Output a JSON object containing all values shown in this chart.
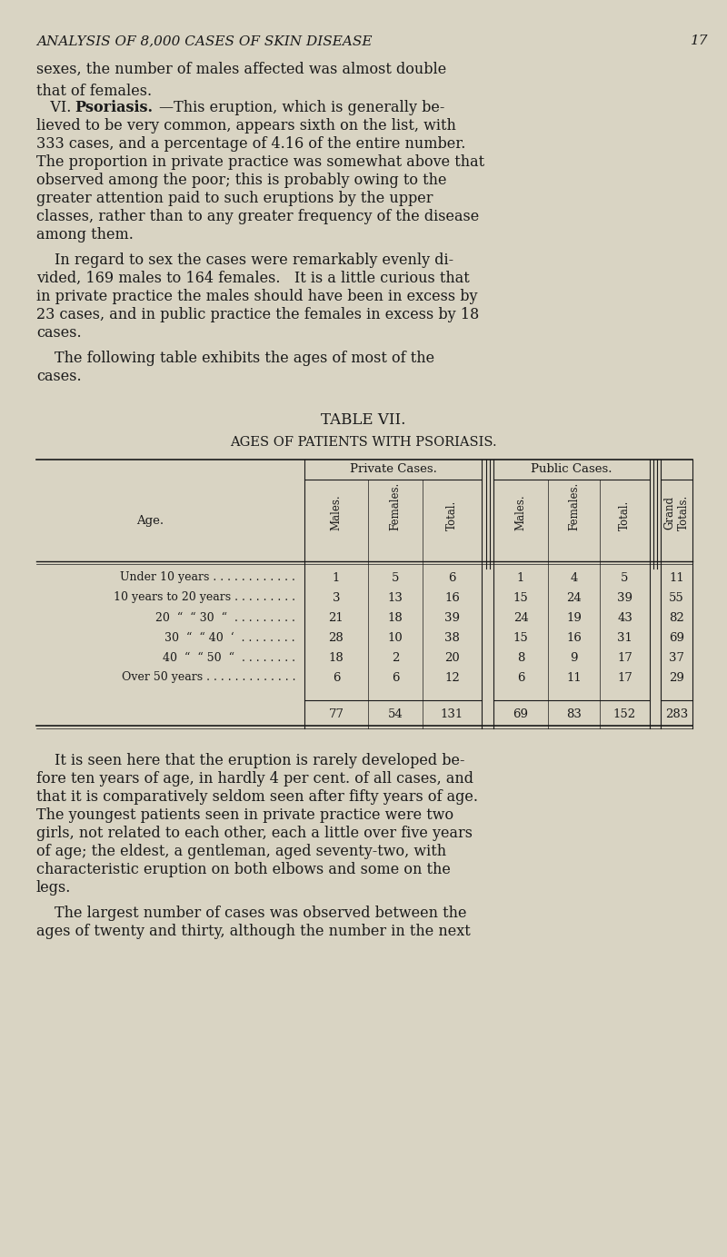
{
  "bg_color": "#d9d4c3",
  "text_color": "#1a1a1a",
  "page_header": "ANALYSIS OF 8,000 CASES OF SKIN DISEASE",
  "page_number": "17",
  "para1": "sexes, the number of males affected was almost double\nthat of females.",
  "para2_bold": "Psoriasis.",
  "para2_roman": "VI.",
  "para2_rest": "—This eruption, which is generally be-\nlieved to be very common, appears sixth on the list, with\n333 cases, and a percentage of 4.16 of the entire number.\nThe proportion in private practice was somewhat above that\nobserved among the poor; this is probably owing to the\ngreater attention paid to such eruptions by the upper\nclasses, rather than to any greater frequency of the disease\namong them.",
  "para3": "In regard to sex the cases were remarkably evenly di-\nvided, 169 males to 164 females.   It is a little curious that\nin private practice the males should have been in excess by\n23 cases, and in public practice the females in excess by 18\ncases.",
  "para4": "The following table exhibits the ages of most of the\ncases.",
  "table_title": "TABLE VII.",
  "table_subtitle": "AGES OF PATIENTS WITH PSORIASIS.",
  "col_groups": [
    "Private Cases.",
    "Public Cases."
  ],
  "col_headers": [
    "Males.",
    "Females.",
    "Total.",
    "Males.",
    "Females.",
    "Total.",
    "Grand\nTotals."
  ],
  "row_label": "Age.",
  "row_labels": [
    "Under 10 years . . . . . . . . . . . .",
    "10 years to 20 years . . . . . . . . .",
    "20  “  “ 30  “  . . . . . . . . .",
    "30  “  “ 40  ‘  . . . . . . . .",
    "40  “  “ 50  “  . . . . . . . .",
    "Over 50 years . . . . . . . . . . . . ."
  ],
  "table_data": [
    [
      1,
      5,
      6,
      1,
      4,
      5,
      11
    ],
    [
      3,
      13,
      16,
      15,
      24,
      39,
      55
    ],
    [
      21,
      18,
      39,
      24,
      19,
      43,
      82
    ],
    [
      28,
      10,
      38,
      15,
      16,
      31,
      69
    ],
    [
      18,
      2,
      20,
      8,
      9,
      17,
      37
    ],
    [
      6,
      6,
      12,
      6,
      11,
      17,
      29
    ]
  ],
  "totals_row": [
    77,
    54,
    131,
    69,
    83,
    152,
    283
  ],
  "para5": "It is seen here that the eruption is rarely developed be-\nfore ten years of age, in hardly 4 per cent. of all cases, and\nthat it is comparatively seldom seen after fifty years of age.\nThe youngest patients seen in private practice were two\ngirls, not related to each other, each a little over five years\nof age; the eldest, a gentleman, aged seventy-two, with\ncharacteristic eruption on both elbows and some on the\nlegs.",
  "para6": "The largest number of cases was observed between the\nages of twenty and thirty, although the number in the next"
}
